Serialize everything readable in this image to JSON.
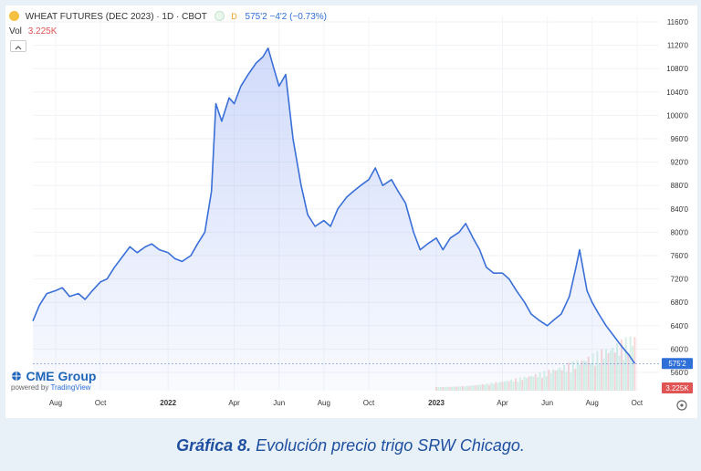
{
  "header": {
    "symbol": "WHEAT FUTURES (DEC 2023) · 1D · CBOT",
    "delay_badge": "D",
    "quote": "575'2  −4'2 (−0.73%)",
    "vol_label": "Vol",
    "vol_value": "3.225K",
    "colors": {
      "quote": "#2f6fd8",
      "vol": "#e05454",
      "badge": "#f0a020",
      "accent": "#2f6fd8"
    }
  },
  "footer": {
    "brand": "CME Group",
    "powered": "powered by",
    "tv": "TradingView"
  },
  "caption": {
    "label": "Gráfica 8.",
    "text": "Evolución precio trigo SRW Chicago."
  },
  "chart_data": {
    "type": "area",
    "title": "WHEAT FUTURES (DEC 2023) · 1D · CBOT",
    "ylim": [
      560,
      1160
    ],
    "y_ticks": [
      "1160'0",
      "1120'0",
      "1080'0",
      "1040'0",
      "1000'0",
      "960'0",
      "920'0",
      "880'0",
      "840'0",
      "800'0",
      "760'0",
      "720'0",
      "680'0",
      "640'0",
      "600'0",
      "560'0"
    ],
    "y_tick_values": [
      1160,
      1120,
      1080,
      1040,
      1000,
      960,
      920,
      880,
      840,
      800,
      760,
      720,
      680,
      640,
      600,
      560
    ],
    "x_ticks": [
      "Aug",
      "Oct",
      "2022",
      "Apr",
      "Jun",
      "Aug",
      "Oct",
      "2023",
      "Apr",
      "Jun",
      "Aug",
      "Oct"
    ],
    "x_tick_dates": [
      "2021-08-01",
      "2021-10-01",
      "2022-01-01",
      "2022-04-01",
      "2022-06-01",
      "2022-08-01",
      "2022-10-01",
      "2023-01-01",
      "2023-04-01",
      "2023-06-01",
      "2023-08-01",
      "2023-10-01"
    ],
    "x_range": [
      "2021-07-01",
      "2023-10-31"
    ],
    "last_price_label": "575'2",
    "last_price": 575.25,
    "volume_label": "3.225K",
    "grid": true,
    "series": [
      {
        "color": "#3a6fd8",
        "points": [
          [
            "2021-07-01",
            648
          ],
          [
            "2021-07-10",
            675
          ],
          [
            "2021-07-20",
            695
          ],
          [
            "2021-08-01",
            700
          ],
          [
            "2021-08-10",
            705
          ],
          [
            "2021-08-20",
            690
          ],
          [
            "2021-09-01",
            695
          ],
          [
            "2021-09-10",
            685
          ],
          [
            "2021-09-20",
            700
          ],
          [
            "2021-10-01",
            715
          ],
          [
            "2021-10-10",
            720
          ],
          [
            "2021-10-20",
            740
          ],
          [
            "2021-11-01",
            760
          ],
          [
            "2021-11-10",
            775
          ],
          [
            "2021-11-20",
            765
          ],
          [
            "2021-12-01",
            775
          ],
          [
            "2021-12-10",
            780
          ],
          [
            "2021-12-20",
            770
          ],
          [
            "2022-01-01",
            765
          ],
          [
            "2022-01-10",
            755
          ],
          [
            "2022-01-20",
            750
          ],
          [
            "2022-02-01",
            760
          ],
          [
            "2022-02-10",
            780
          ],
          [
            "2022-02-20",
            800
          ],
          [
            "2022-03-01",
            870
          ],
          [
            "2022-03-07",
            1020
          ],
          [
            "2022-03-15",
            990
          ],
          [
            "2022-03-25",
            1030
          ],
          [
            "2022-04-01",
            1020
          ],
          [
            "2022-04-10",
            1050
          ],
          [
            "2022-04-20",
            1070
          ],
          [
            "2022-05-01",
            1090
          ],
          [
            "2022-05-10",
            1100
          ],
          [
            "2022-05-17",
            1115
          ],
          [
            "2022-05-25",
            1080
          ],
          [
            "2022-06-01",
            1050
          ],
          [
            "2022-06-10",
            1070
          ],
          [
            "2022-06-20",
            960
          ],
          [
            "2022-07-01",
            880
          ],
          [
            "2022-07-10",
            830
          ],
          [
            "2022-07-20",
            810
          ],
          [
            "2022-08-01",
            820
          ],
          [
            "2022-08-10",
            810
          ],
          [
            "2022-08-20",
            840
          ],
          [
            "2022-09-01",
            860
          ],
          [
            "2022-09-10",
            870
          ],
          [
            "2022-09-20",
            880
          ],
          [
            "2022-10-01",
            890
          ],
          [
            "2022-10-10",
            910
          ],
          [
            "2022-10-20",
            880
          ],
          [
            "2022-11-01",
            890
          ],
          [
            "2022-11-10",
            870
          ],
          [
            "2022-11-20",
            850
          ],
          [
            "2022-12-01",
            800
          ],
          [
            "2022-12-10",
            770
          ],
          [
            "2022-12-20",
            780
          ],
          [
            "2023-01-01",
            790
          ],
          [
            "2023-01-10",
            770
          ],
          [
            "2023-01-20",
            790
          ],
          [
            "2023-02-01",
            800
          ],
          [
            "2023-02-10",
            815
          ],
          [
            "2023-02-20",
            790
          ],
          [
            "2023-03-01",
            770
          ],
          [
            "2023-03-10",
            740
          ],
          [
            "2023-03-20",
            730
          ],
          [
            "2023-04-01",
            730
          ],
          [
            "2023-04-10",
            720
          ],
          [
            "2023-04-20",
            700
          ],
          [
            "2023-05-01",
            680
          ],
          [
            "2023-05-10",
            660
          ],
          [
            "2023-05-20",
            650
          ],
          [
            "2023-06-01",
            640
          ],
          [
            "2023-06-10",
            650
          ],
          [
            "2023-06-20",
            660
          ],
          [
            "2023-07-01",
            690
          ],
          [
            "2023-07-10",
            740
          ],
          [
            "2023-07-15",
            770
          ],
          [
            "2023-07-25",
            700
          ],
          [
            "2023-08-01",
            680
          ],
          [
            "2023-08-10",
            660
          ],
          [
            "2023-08-20",
            640
          ],
          [
            "2023-09-01",
            620
          ],
          [
            "2023-09-10",
            605
          ],
          [
            "2023-09-20",
            590
          ],
          [
            "2023-09-28",
            575.25
          ]
        ]
      }
    ]
  }
}
